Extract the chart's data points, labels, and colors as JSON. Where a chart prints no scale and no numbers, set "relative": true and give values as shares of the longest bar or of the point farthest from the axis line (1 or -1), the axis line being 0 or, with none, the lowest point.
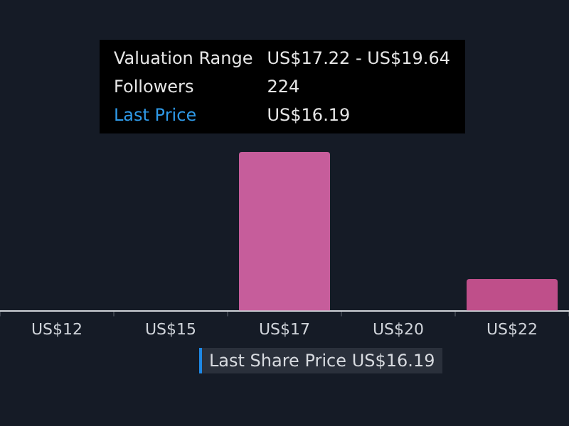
{
  "chart_data": {
    "type": "bar",
    "relative": true,
    "categories": [
      "US$12",
      "US$15",
      "US$17",
      "US$20",
      "US$22"
    ],
    "values": [
      null,
      null,
      1,
      null,
      0.2
    ],
    "colors": [
      "#c65d9b",
      "#c65d9b",
      "#c65d9b",
      "#c65d9b",
      "#bf4f8a"
    ],
    "grid": false,
    "legend": false,
    "annotations": [
      "Valuation Range",
      "US$17.22 - US$19.64",
      "Followers",
      "224",
      "Last Price",
      "US$16.19",
      "Last Share Price US$16.19"
    ]
  }
}
